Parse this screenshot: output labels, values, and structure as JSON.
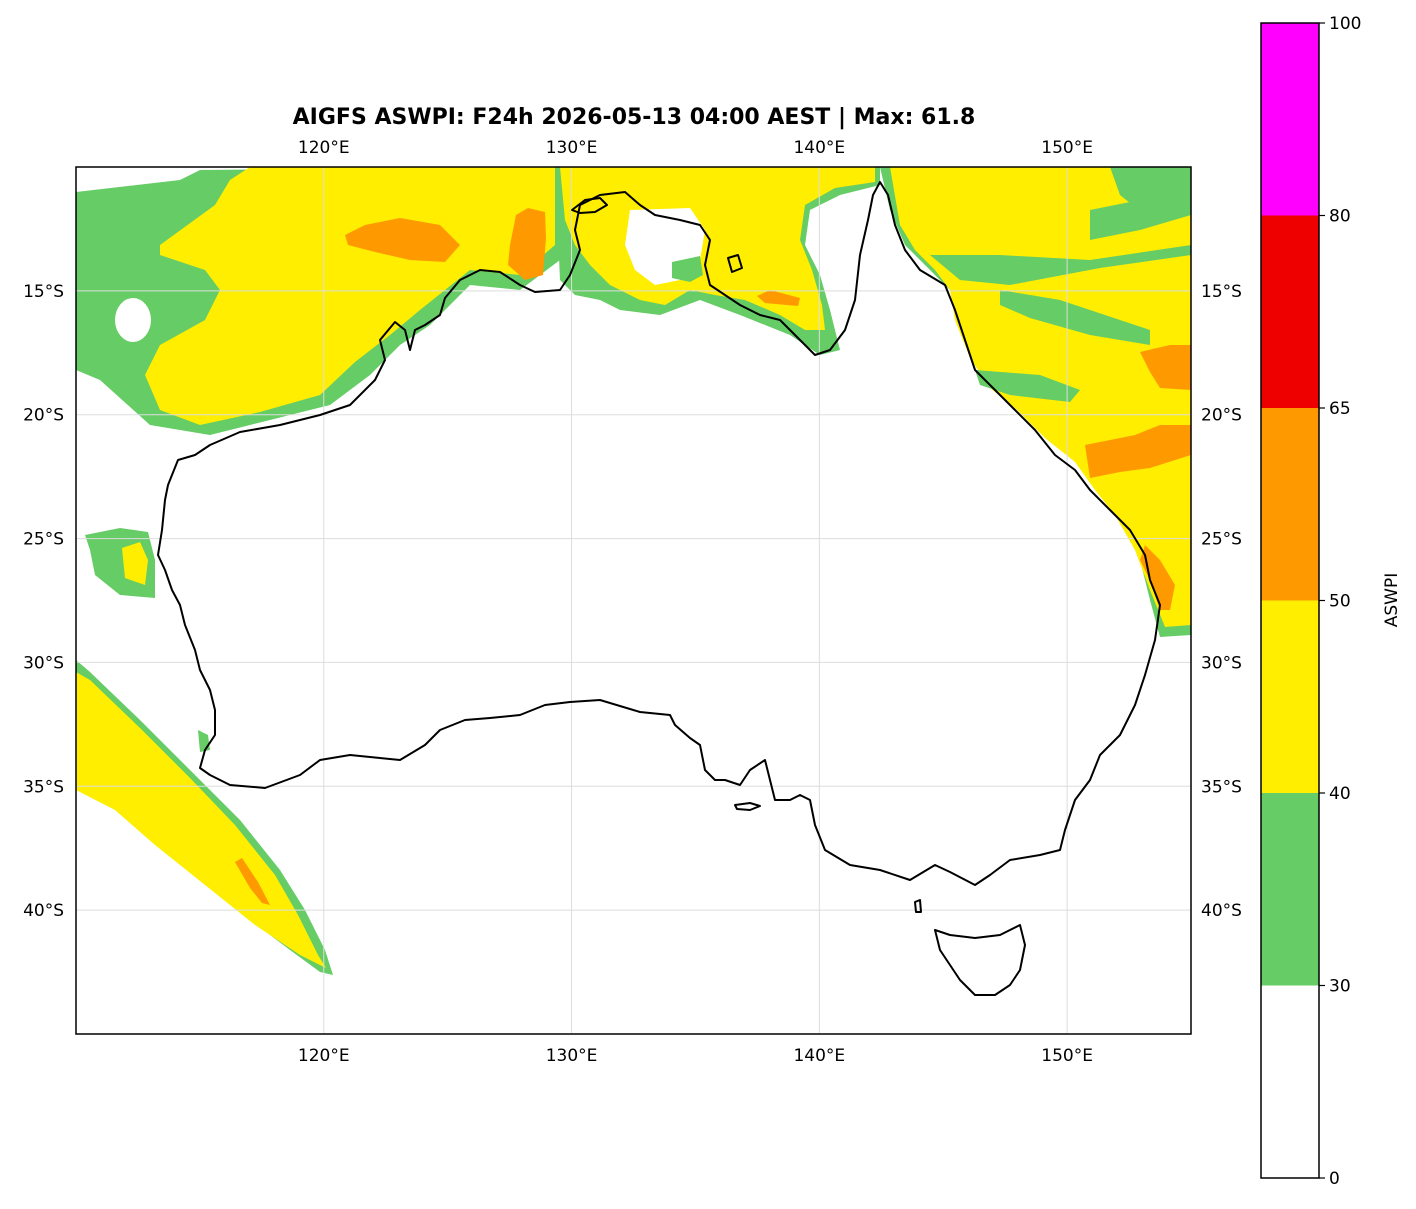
{
  "title": "AIGFS ASWPI: F24h 2026-05-13 04:00 AEST | Max: 61.8",
  "map": {
    "lon_range": [
      110,
      155
    ],
    "lat_range": [
      -45,
      -10
    ],
    "lon_ticks": [
      {
        "value": 120,
        "label": "120°E"
      },
      {
        "value": 130,
        "label": "130°E"
      },
      {
        "value": 140,
        "label": "140°E"
      },
      {
        "value": 150,
        "label": "150°E"
      }
    ],
    "lat_ticks": [
      {
        "value": -15,
        "label": "15°S"
      },
      {
        "value": -20,
        "label": "20°S"
      },
      {
        "value": -25,
        "label": "25°S"
      },
      {
        "value": -30,
        "label": "30°S"
      },
      {
        "value": -35,
        "label": "35°S"
      },
      {
        "value": -40,
        "label": "40°S"
      }
    ],
    "grid": true,
    "colors": {
      "green": "#66cc66",
      "yellow": "#ffee00",
      "orange": "#ff9900",
      "coast": "#000000",
      "grid": "#dddddd"
    }
  },
  "colorbar": {
    "label": "ASWPI",
    "bands": [
      {
        "from": 0,
        "to": 30,
        "color": "#ffffff"
      },
      {
        "from": 30,
        "to": 40,
        "color": "#66cc66"
      },
      {
        "from": 40,
        "to": 50,
        "color": "#ffee00"
      },
      {
        "from": 50,
        "to": 65,
        "color": "#ff9900"
      },
      {
        "from": 65,
        "to": 80,
        "color": "#ee0000"
      },
      {
        "from": 80,
        "to": 100,
        "color": "#ff00ff"
      }
    ],
    "ticks": [
      "0",
      "30",
      "40",
      "50",
      "65",
      "80",
      "100"
    ]
  }
}
